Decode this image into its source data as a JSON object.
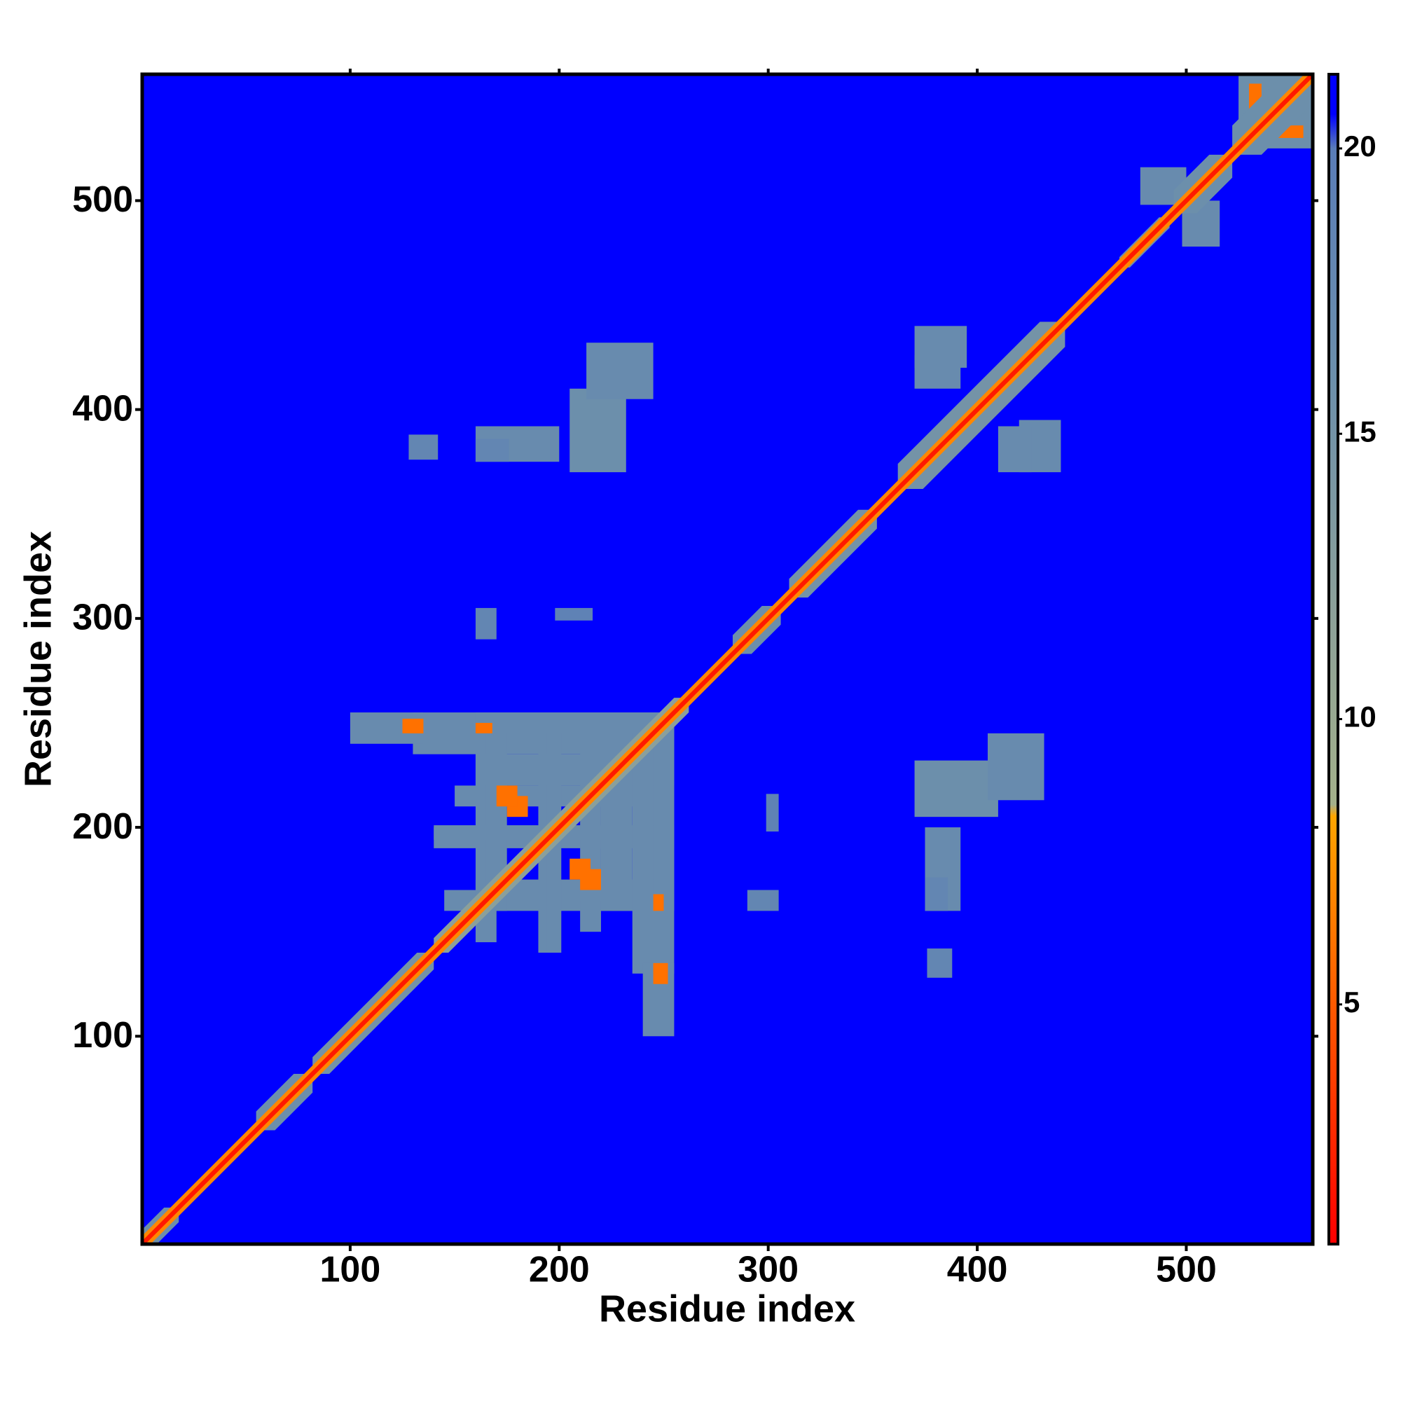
{
  "chart_data": {
    "type": "heatmap",
    "xlabel": "Residue index",
    "ylabel": "Residue index",
    "xlim": [
      0.5,
      560.5
    ],
    "ylim": [
      0.5,
      560.5
    ],
    "xticks": [
      100,
      200,
      300,
      400,
      500
    ],
    "yticks": [
      100,
      200,
      300,
      400,
      500
    ],
    "symmetric": true,
    "background": 21,
    "zlim": [
      0.8,
      21.3
    ],
    "zticks": [
      5,
      10,
      15,
      20
    ],
    "colorscale": [
      {
        "value": 0.8,
        "color": "#ff0000"
      },
      {
        "value": 5,
        "color": "#ff5a00"
      },
      {
        "value": 8.3,
        "color": "#ffa500"
      },
      {
        "value": 8.5,
        "color": "#a3b08a"
      },
      {
        "value": 12,
        "color": "#8ba09a"
      },
      {
        "value": 16,
        "color": "#6c8fab"
      },
      {
        "value": 20,
        "color": "#5a7db8"
      },
      {
        "value": 20.6,
        "color": "#0000ff"
      },
      {
        "value": 21.3,
        "color": "#0000ff"
      }
    ],
    "diagonal": [
      {
        "from": 1,
        "to": 18,
        "width": 7,
        "value": 16
      },
      {
        "from": 55,
        "to": 82,
        "width": 9,
        "value": 16
      },
      {
        "from": 82,
        "to": 140,
        "width": 8,
        "value": 15
      },
      {
        "from": 140,
        "to": 262,
        "width": 7,
        "value": 12
      },
      {
        "from": 283,
        "to": 306,
        "width": 9,
        "value": 16
      },
      {
        "from": 310,
        "to": 352,
        "width": 9,
        "value": 15
      },
      {
        "from": 362,
        "to": 442,
        "width": 12,
        "value": 15
      },
      {
        "from": 468,
        "to": 492,
        "width": 5,
        "value": 16
      },
      {
        "from": 494,
        "to": 522,
        "width": 11,
        "value": 16
      },
      {
        "from": 522,
        "to": 560,
        "width": 14,
        "value": 16
      },
      {
        "from": 1,
        "to": 560,
        "width": 4,
        "value": 7
      },
      {
        "from": 1,
        "to": 560,
        "width": 1.5,
        "value": 2
      }
    ],
    "patches": [
      {
        "x": [
          370,
          410
        ],
        "y": [
          205,
          232
        ],
        "value": 16
      },
      {
        "x": [
          405,
          432
        ],
        "y": [
          213,
          245
        ],
        "value": 17
      },
      {
        "x": [
          375,
          392
        ],
        "y": [
          160,
          200
        ],
        "value": 17
      },
      {
        "x": [
          376,
          388
        ],
        "y": [
          128,
          142
        ],
        "value": 18
      },
      {
        "x": [
          420,
          440
        ],
        "y": [
          370,
          395
        ],
        "value": 17
      },
      {
        "x": [
          370,
          392
        ],
        "y": [
          410,
          426
        ],
        "value": 17
      },
      {
        "x": [
          290,
          305
        ],
        "y": [
          160,
          170
        ],
        "value": 18
      },
      {
        "x": [
          299,
          305
        ],
        "y": [
          198,
          216
        ],
        "value": 19
      },
      {
        "x": [
          160,
          176
        ],
        "y": [
          375,
          386
        ],
        "value": 18
      },
      {
        "x": [
          498,
          516
        ],
        "y": [
          478,
          500
        ],
        "value": 17
      },
      {
        "x": [
          530,
          560
        ],
        "y": [
          525,
          560
        ],
        "value": 16
      },
      {
        "x": [
          160,
          170
        ],
        "y": [
          145,
          255
        ],
        "value": 17
      },
      {
        "x": [
          190,
          200
        ],
        "y": [
          140,
          255
        ],
        "value": 17
      },
      {
        "x": [
          210,
          220
        ],
        "y": [
          150,
          250
        ],
        "value": 17
      },
      {
        "x": [
          235,
          255
        ],
        "y": [
          130,
          255
        ],
        "value": 17
      },
      {
        "x": [
          160,
          255
        ],
        "y": [
          165,
          175
        ],
        "value": 17
      },
      {
        "x": [
          140,
          255
        ],
        "y": [
          194,
          201
        ],
        "value": 17
      },
      {
        "x": [
          160,
          255
        ],
        "y": [
          220,
          235
        ],
        "value": 17
      },
      {
        "x": [
          160,
          250
        ],
        "y": [
          245,
          255
        ],
        "value": 17
      },
      {
        "x": [
          100,
          135
        ],
        "y": [
          240,
          255
        ],
        "value": 17
      },
      {
        "x": [
          175,
          185
        ],
        "y": [
          205,
          215
        ],
        "value": 6
      },
      {
        "x": [
          210,
          220
        ],
        "y": [
          170,
          180
        ],
        "value": 6
      },
      {
        "x": [
          245,
          252
        ],
        "y": [
          125,
          135
        ],
        "value": 6
      },
      {
        "x": [
          245,
          250
        ],
        "y": [
          160,
          168
        ],
        "value": 6
      },
      {
        "x": [
          130,
          135
        ],
        "y": [
          245,
          252
        ],
        "value": 6
      },
      {
        "x": [
          540,
          556
        ],
        "y": [
          530,
          536
        ],
        "value": 6
      }
    ]
  }
}
